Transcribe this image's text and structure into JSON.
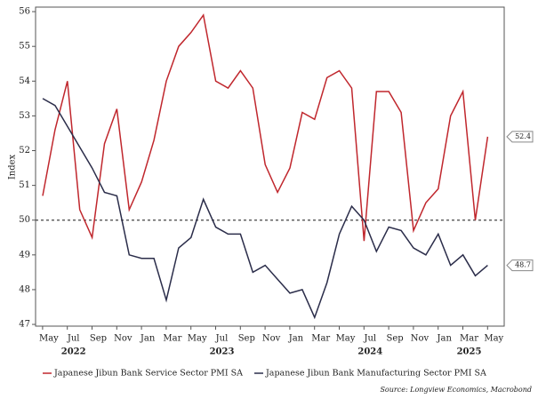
{
  "chart_data": {
    "type": "line",
    "y_label": "Index",
    "source": "Source: Longview Economics, Macrobond",
    "x": [
      "2022-04",
      "2022-05",
      "2022-06",
      "2022-07",
      "2022-08",
      "2022-09",
      "2022-10",
      "2022-11",
      "2022-12",
      "2023-01",
      "2023-02",
      "2023-03",
      "2023-04",
      "2023-05",
      "2023-06",
      "2023-07",
      "2023-08",
      "2023-09",
      "2023-10",
      "2023-11",
      "2023-12",
      "2024-01",
      "2024-02",
      "2024-03",
      "2024-04",
      "2024-05",
      "2024-06",
      "2024-07",
      "2024-08",
      "2024-09",
      "2024-10",
      "2024-11",
      "2024-12",
      "2025-01",
      "2025-02",
      "2025-03",
      "2025-04"
    ],
    "series": [
      {
        "name": "Japanese Jibun Bank Service Sector PMI SA",
        "color": "#c0272d",
        "values": [
          50.7,
          52.6,
          54.0,
          50.3,
          49.5,
          52.2,
          53.2,
          50.3,
          51.1,
          52.3,
          54.0,
          55.0,
          55.4,
          55.9,
          54.0,
          53.8,
          54.3,
          53.8,
          51.6,
          50.8,
          51.5,
          53.1,
          52.9,
          54.1,
          54.3,
          53.8,
          49.4,
          53.7,
          53.7,
          53.1,
          49.7,
          50.5,
          50.9,
          53.0,
          53.7,
          50.0,
          52.4
        ],
        "last_label": "52.4"
      },
      {
        "name": "Japanese Jibun Bank Manufacturing Sector PMI SA",
        "color": "#2b2d4a",
        "values": [
          53.5,
          53.3,
          52.7,
          52.1,
          51.5,
          50.8,
          50.7,
          49.0,
          48.9,
          48.9,
          47.7,
          49.2,
          49.5,
          50.6,
          49.8,
          49.6,
          49.6,
          48.5,
          48.7,
          48.3,
          47.9,
          48.0,
          47.2,
          48.2,
          49.6,
          50.4,
          50.0,
          49.1,
          49.8,
          49.7,
          49.2,
          49.0,
          49.6,
          48.7,
          49.0,
          48.4,
          48.7
        ],
        "last_label": "48.7"
      }
    ],
    "reference_line": 50,
    "ylim": [
      46.95,
      56.13
    ],
    "yticks": [
      47,
      48,
      49,
      50,
      51,
      52,
      53,
      54,
      55,
      56
    ],
    "xticks": [
      {
        "value": "2022-05",
        "label": "May"
      },
      {
        "value": "2022-07",
        "label": "Jul"
      },
      {
        "value": "2022-09",
        "label": "Sep"
      },
      {
        "value": "2022-11",
        "label": "Nov"
      },
      {
        "value": "2023-01",
        "label": "Jan"
      },
      {
        "value": "2023-03",
        "label": "Mar"
      },
      {
        "value": "2023-05",
        "label": "May"
      },
      {
        "value": "2023-07",
        "label": "Jul"
      },
      {
        "value": "2023-09",
        "label": "Sep"
      },
      {
        "value": "2023-11",
        "label": "Nov"
      },
      {
        "value": "2024-01",
        "label": "Jan"
      },
      {
        "value": "2024-03",
        "label": "Mar"
      },
      {
        "value": "2024-05",
        "label": "May"
      },
      {
        "value": "2024-07",
        "label": "Jul"
      },
      {
        "value": "2024-09",
        "label": "Sep"
      },
      {
        "value": "2024-11",
        "label": "Nov"
      },
      {
        "value": "2025-01",
        "label": "Jan"
      },
      {
        "value": "2025-03",
        "label": "Mar"
      },
      {
        "value": "2025-05",
        "label": "May"
      }
    ],
    "year_ticks": [
      {
        "value": "2022-07",
        "label": "2022"
      },
      {
        "value": "2023-07",
        "label": "2023"
      },
      {
        "value": "2024-07",
        "label": "2024"
      },
      {
        "value": "2025-03",
        "label": "2025"
      }
    ]
  }
}
